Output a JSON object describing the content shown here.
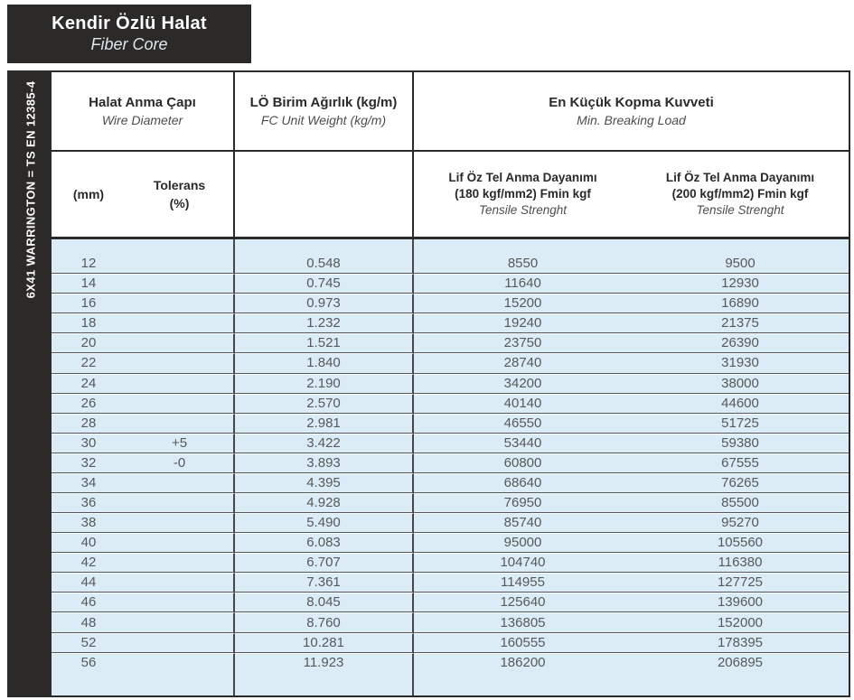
{
  "title": {
    "line1": "Kendir Özlü Halat",
    "line2": "Fiber Core"
  },
  "side_rail": {
    "label": "6X41 WARRINGTON = TS EN 12385-4"
  },
  "colors": {
    "dark": "#2B2A29",
    "row_blue": "#DCECF6",
    "data_text": "#57585B",
    "grid_line": "#55565A"
  },
  "table": {
    "header": {
      "wire_diameter_tr": "Halat Anma Çapı",
      "wire_diameter_en": "Wire Diameter",
      "unit_weight_tr": "LÖ Birim Ağırlık (kg/m)",
      "unit_weight_en": "FC Unit Weight (kg/m)",
      "breaking_load_tr": "En Küçük Kopma Kuvveti",
      "breaking_load_en": "Min. Breaking Load",
      "mm": "(mm)",
      "tolerance_line1": "Tolerans",
      "tolerance_line2": "(%)",
      "f180_line1": "Lif Öz Tel Anma Dayanımı",
      "f180_line2": "(180 kgf/mm2) Fmin kgf",
      "f180_en": "Tensile Strenght",
      "f200_line1": "Lif Öz Tel Anma Dayanımı",
      "f200_line2": "(200 kgf/mm2) Fmin kgf",
      "f200_en": "Tensile Strenght"
    },
    "columns": [
      "mm",
      "tolerance_pct",
      "unit_weight_kg_m",
      "fmin_180_kgf",
      "fmin_200_kgf"
    ],
    "rows": [
      [
        "12",
        "",
        "0.548",
        "8550",
        "9500"
      ],
      [
        "14",
        "",
        "0.745",
        "11640",
        "12930"
      ],
      [
        "16",
        "",
        "0.973",
        "15200",
        "16890"
      ],
      [
        "18",
        "",
        "1.232",
        "19240",
        "21375"
      ],
      [
        "20",
        "",
        "1.521",
        "23750",
        "26390"
      ],
      [
        "22",
        "",
        "1.840",
        "28740",
        "31930"
      ],
      [
        "24",
        "",
        "2.190",
        "34200",
        "38000"
      ],
      [
        "26",
        "",
        "2.570",
        "40140",
        "44600"
      ],
      [
        "28",
        "",
        "2.981",
        "46550",
        "51725"
      ],
      [
        "30",
        "+5",
        "3.422",
        "53440",
        "59380"
      ],
      [
        "32",
        "-0",
        "3.893",
        "60800",
        "67555"
      ],
      [
        "34",
        "",
        "4.395",
        "68640",
        "76265"
      ],
      [
        "36",
        "",
        "4.928",
        "76950",
        "85500"
      ],
      [
        "38",
        "",
        "5.490",
        "85740",
        "95270"
      ],
      [
        "40",
        "",
        "6.083",
        "95000",
        "105560"
      ],
      [
        "42",
        "",
        "6.707",
        "104740",
        "116380"
      ],
      [
        "44",
        "",
        "7.361",
        "114955",
        "127725"
      ],
      [
        "46",
        "",
        "8.045",
        "125640",
        "139600"
      ],
      [
        "48",
        "",
        "8.760",
        "136805",
        "152000"
      ],
      [
        "52",
        "",
        "10.281",
        "160555",
        "178395"
      ],
      [
        "56",
        "",
        "11.923",
        "186200",
        "206895"
      ]
    ]
  }
}
